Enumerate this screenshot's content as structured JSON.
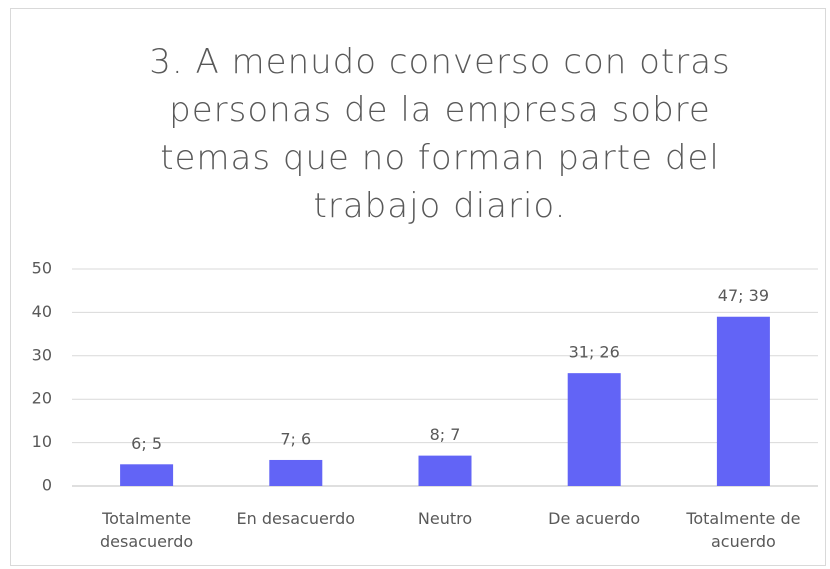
{
  "chart_data": {
    "type": "bar",
    "title": "3. A menudo converso con otras personas de la empresa sobre temas que no forman parte del trabajo diario.",
    "categories": [
      "Totalmente desacuerdo",
      "En desacuerdo",
      "Neutro",
      "De acuerdo",
      "Totalmente de acuerdo"
    ],
    "values": [
      5,
      6,
      7,
      26,
      39
    ],
    "value_labels": [
      "6; 5",
      "7; 6",
      "8; 7",
      "31; 26",
      "47; 39"
    ],
    "color": "#6264f6",
    "ylim": [
      0,
      50
    ],
    "yticks": [
      0,
      10,
      20,
      30,
      40,
      50
    ],
    "grid": true
  }
}
